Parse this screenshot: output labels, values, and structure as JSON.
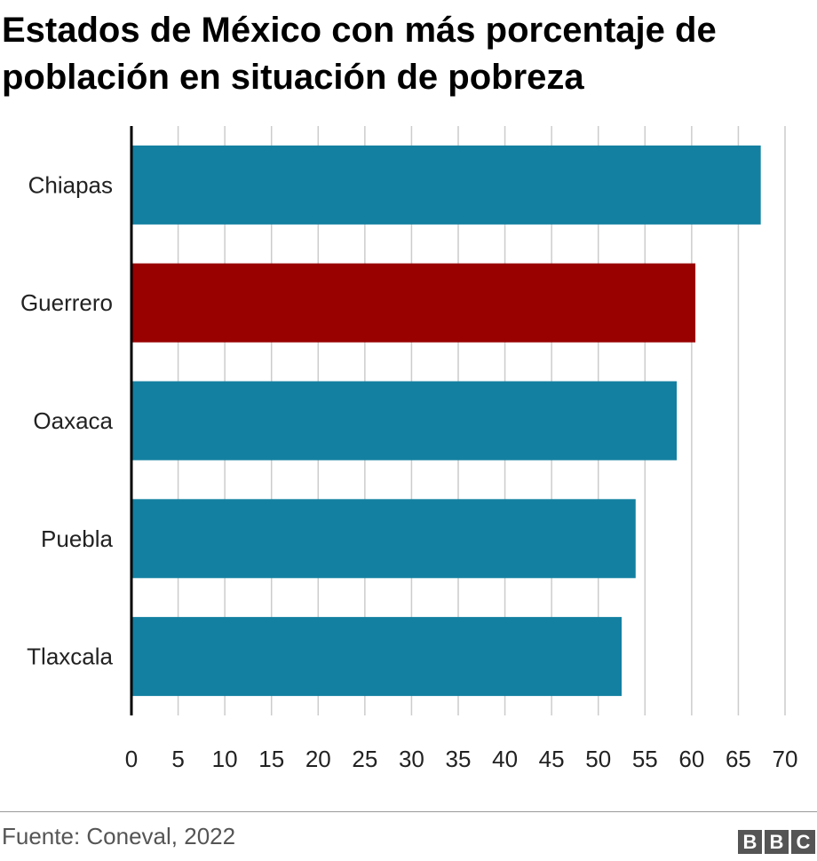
{
  "title": "Estados de México con más porcentaje de población en situación de pobreza",
  "source": "Fuente: Coneval, 2022",
  "logo": {
    "letters": [
      "B",
      "B",
      "C"
    ]
  },
  "colors": {
    "default_bar": "#1380a1",
    "highlight_bar": "#990000",
    "grid": "#cccccc",
    "axis": "#000000"
  },
  "chart_data": {
    "type": "bar",
    "orientation": "horizontal",
    "categories": [
      "Chiapas",
      "Guerrero",
      "Oaxaca",
      "Puebla",
      "Tlaxcala"
    ],
    "values": [
      67.4,
      60.4,
      58.4,
      54.0,
      52.5
    ],
    "highlight": [
      "Guerrero"
    ],
    "xlim": [
      0,
      70
    ],
    "xticks": [
      0,
      5,
      10,
      15,
      20,
      25,
      30,
      35,
      40,
      45,
      50,
      55,
      60,
      65,
      70
    ],
    "grid": true,
    "xlabel": "",
    "ylabel": ""
  }
}
